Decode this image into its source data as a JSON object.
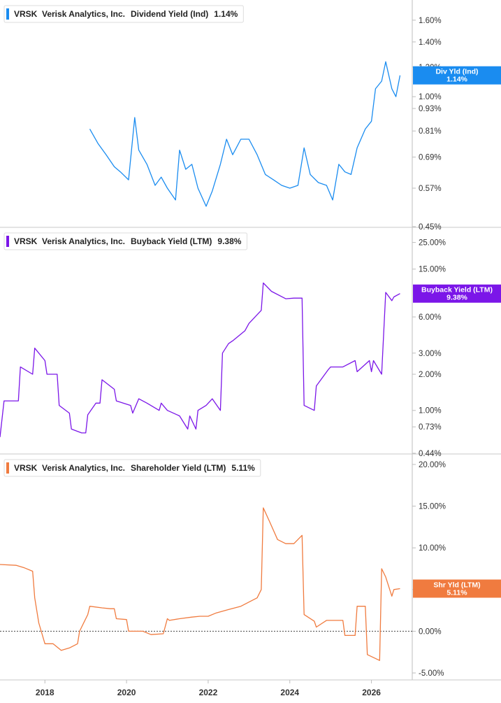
{
  "chart_data": [
    {
      "type": "line",
      "ticker": "VRSK",
      "company": "Verisk Analytics, Inc.",
      "metric": "Dividend Yield (Ind)",
      "current_value": "1.14%",
      "tag_label": "Div Yld (Ind)",
      "tag_value": "1.14%",
      "color": "#1a8cf0",
      "yscale": "log",
      "ylim": [
        0.45,
        1.75
      ],
      "yticks": [
        0.45,
        0.57,
        0.69,
        0.81,
        0.93,
        1.0,
        1.2,
        1.4,
        1.6
      ],
      "ytick_labels": [
        "0.45%",
        "0.57%",
        "0.69%",
        "0.81%",
        "0.93%",
        "1.00%",
        "1.20%",
        "1.40%",
        "1.60%"
      ],
      "series": [
        {
          "x": [
            2019.1,
            2019.3,
            2019.5,
            2019.7,
            2019.85,
            2020.05,
            2020.2,
            2020.3,
            2020.5,
            2020.7,
            2020.85,
            2021.0,
            2021.2,
            2021.3,
            2021.45,
            2021.6,
            2021.75,
            2021.95,
            2022.1,
            2022.3,
            2022.45,
            2022.6,
            2022.8,
            2023.0,
            2023.2,
            2023.4,
            2023.6,
            2023.8,
            2024.0,
            2024.2,
            2024.35,
            2024.5,
            2024.7,
            2024.9,
            2025.05,
            2025.2,
            2025.35,
            2025.5,
            2025.65,
            2025.85,
            2026.0,
            2026.1,
            2026.25,
            2026.35,
            2026.5,
            2026.6,
            2026.7
          ],
          "y": [
            0.82,
            0.75,
            0.7,
            0.65,
            0.63,
            0.6,
            0.88,
            0.72,
            0.66,
            0.58,
            0.61,
            0.57,
            0.53,
            0.72,
            0.64,
            0.66,
            0.57,
            0.51,
            0.56,
            0.66,
            0.77,
            0.7,
            0.77,
            0.77,
            0.7,
            0.62,
            0.6,
            0.58,
            0.57,
            0.58,
            0.73,
            0.62,
            0.59,
            0.58,
            0.53,
            0.66,
            0.63,
            0.62,
            0.73,
            0.82,
            0.86,
            1.05,
            1.1,
            1.24,
            1.05,
            1.0,
            1.14
          ]
        }
      ]
    },
    {
      "type": "line",
      "ticker": "VRSK",
      "company": "Verisk Analytics, Inc.",
      "metric": "Buyback Yield (LTM)",
      "current_value": "9.38%",
      "tag_label": "Buyback Yield (LTM)",
      "tag_value": "9.38%",
      "color": "#7b16e8",
      "yscale": "log",
      "ylim": [
        0.44,
        30
      ],
      "yticks": [
        0.44,
        0.73,
        1.0,
        2.0,
        3.0,
        6.0,
        15.0,
        25.0
      ],
      "ytick_labels": [
        "0.44%",
        "0.73%",
        "1.00%",
        "2.00%",
        "3.00%",
        "6.00%",
        "15.00%",
        "25.00%"
      ],
      "series": [
        {
          "x": [
            2016.9,
            2017.0,
            2017.35,
            2017.4,
            2017.7,
            2017.75,
            2018.0,
            2018.05,
            2018.3,
            2018.35,
            2018.6,
            2018.65,
            2018.9,
            2019.0,
            2019.05,
            2019.25,
            2019.35,
            2019.4,
            2019.7,
            2019.75,
            2020.1,
            2020.15,
            2020.3,
            2020.5,
            2020.8,
            2020.85,
            2021.0,
            2021.3,
            2021.5,
            2021.55,
            2021.7,
            2021.75,
            2021.95,
            2022.1,
            2022.3,
            2022.35,
            2022.5,
            2022.6,
            2022.9,
            2023.0,
            2023.3,
            2023.35,
            2023.55,
            2023.9,
            2024.1,
            2024.3,
            2024.35,
            2024.6,
            2024.65,
            2024.95,
            2025.0,
            2025.3,
            2025.6,
            2025.65,
            2025.95,
            2026.0,
            2026.05,
            2026.25,
            2026.35,
            2026.5,
            2026.55,
            2026.7
          ],
          "y": [
            0.6,
            1.2,
            1.2,
            2.3,
            2.0,
            3.3,
            2.6,
            2.0,
            2.0,
            1.1,
            0.95,
            0.7,
            0.65,
            0.65,
            0.92,
            1.15,
            1.15,
            1.8,
            1.5,
            1.2,
            1.1,
            0.95,
            1.25,
            1.15,
            1.0,
            1.15,
            1.0,
            0.9,
            0.7,
            0.9,
            0.7,
            1.0,
            1.1,
            1.25,
            1.0,
            3.0,
            3.6,
            3.8,
            4.6,
            5.3,
            6.8,
            11.5,
            9.8,
            8.5,
            8.6,
            8.6,
            1.1,
            1.0,
            1.6,
            2.2,
            2.3,
            2.3,
            2.6,
            2.1,
            2.6,
            2.1,
            2.6,
            2.0,
            9.6,
            8.2,
            8.8,
            9.38
          ]
        }
      ]
    },
    {
      "type": "line",
      "ticker": "VRSK",
      "company": "Verisk Analytics, Inc.",
      "metric": "Shareholder Yield (LTM)",
      "current_value": "5.11%",
      "tag_label": "Shr Yld (LTM)",
      "tag_value": "5.11%",
      "color": "#f07b3f",
      "yscale": "linear",
      "ylim": [
        -5.5,
        20.5
      ],
      "yticks": [
        -5,
        0,
        5,
        10,
        15,
        20
      ],
      "ytick_labels": [
        "-5.00%",
        "0.00%",
        "5.00%",
        "10.00%",
        "15.00%",
        "20.00%"
      ],
      "zero_line": true,
      "series": [
        {
          "x": [
            2016.9,
            2017.3,
            2017.5,
            2017.7,
            2017.75,
            2017.85,
            2018.0,
            2018.05,
            2018.2,
            2018.4,
            2018.6,
            2018.8,
            2018.85,
            2019.05,
            2019.1,
            2019.4,
            2019.6,
            2019.7,
            2019.75,
            2020.0,
            2020.05,
            2020.4,
            2020.6,
            2020.9,
            2021.0,
            2021.05,
            2021.3,
            2021.6,
            2021.8,
            2022.0,
            2022.2,
            2022.5,
            2022.8,
            2023.0,
            2023.2,
            2023.3,
            2023.35,
            2023.5,
            2023.7,
            2023.9,
            2024.1,
            2024.3,
            2024.35,
            2024.6,
            2024.65,
            2024.9,
            2025.0,
            2025.3,
            2025.35,
            2025.6,
            2025.65,
            2025.85,
            2025.9,
            2026.2,
            2026.25,
            2026.35,
            2026.5,
            2026.55,
            2026.7
          ],
          "y": [
            8.0,
            7.9,
            7.6,
            7.2,
            4.0,
            1.0,
            -1.5,
            -1.5,
            -1.5,
            -2.3,
            -2.0,
            -1.5,
            0.0,
            2.0,
            3.0,
            2.8,
            2.7,
            2.7,
            1.5,
            1.4,
            0.0,
            0.0,
            -0.4,
            -0.3,
            1.5,
            1.3,
            1.5,
            1.7,
            1.8,
            1.8,
            2.2,
            2.6,
            3.0,
            3.5,
            4.0,
            5.0,
            14.8,
            13.2,
            11.0,
            10.5,
            10.5,
            11.5,
            2.0,
            1.2,
            0.5,
            1.3,
            1.3,
            1.3,
            -0.5,
            -0.5,
            3.0,
            3.0,
            -2.8,
            -3.5,
            7.5,
            6.5,
            4.2,
            5.0,
            5.11
          ]
        }
      ]
    }
  ],
  "x_axis": {
    "min": 2016.9,
    "max": 2027.0,
    "ticks": [
      2018,
      2020,
      2022,
      2024,
      2026
    ],
    "tick_labels": [
      "2018",
      "2020",
      "2022",
      "2024",
      "2026"
    ]
  }
}
